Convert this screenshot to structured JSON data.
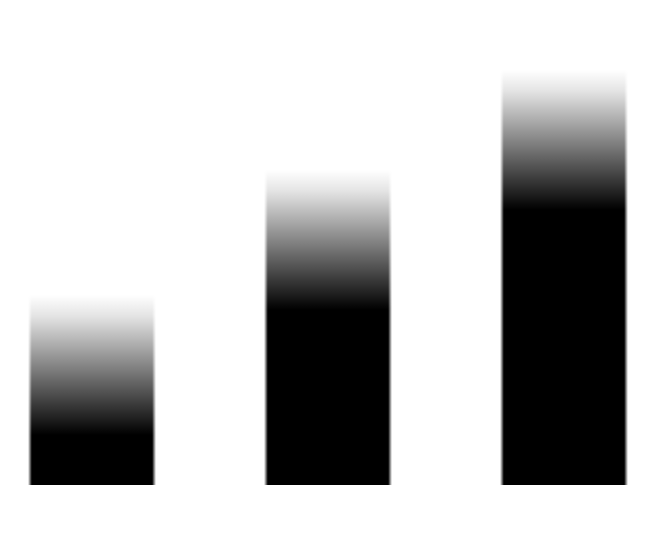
{
  "chart_data": {
    "type": "bar",
    "categories": [
      "",
      "",
      ""
    ],
    "values": [
      190,
      315,
      415
    ],
    "ylim": [
      0,
      485
    ],
    "grid": false,
    "bar_color": "#000000",
    "fade_color": "#ffffff",
    "background": "#ffffff"
  }
}
